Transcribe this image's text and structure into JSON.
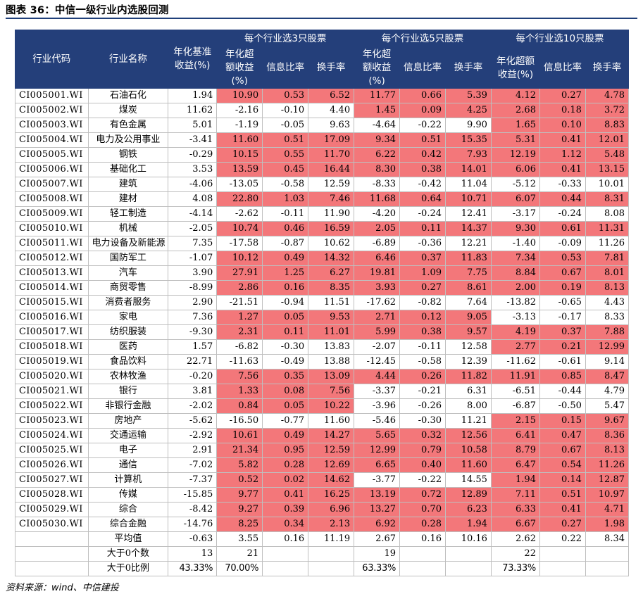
{
  "title": "图表 36：中信一级行业内选股回测",
  "source": "资料来源：wind、中信建投",
  "header": {
    "code": "行业代码",
    "name": "行业名称",
    "bench": "年化基准收益(%)",
    "group3": "每个行业选3只股票",
    "group5": "每个行业选5只股票",
    "group10": "每个行业选10只股票",
    "excess": "年化超额收益(%)",
    "ir": "信息比率",
    "turnover": "换手率"
  },
  "colors": {
    "header_bg": "#243f7a",
    "highlight": "#f3777a",
    "rule": "#1f3f7a"
  },
  "rows": [
    {
      "code": "CI005001.WI",
      "name": "石油石化",
      "bench": "1.94",
      "g3": [
        "10.90",
        "0.53",
        "6.52"
      ],
      "g5": [
        "11.77",
        "0.66",
        "5.39"
      ],
      "g10": [
        "4.12",
        "0.27",
        "4.78"
      ],
      "r3": true,
      "r5": true,
      "r10": true
    },
    {
      "code": "CI005002.WI",
      "name": "煤炭",
      "bench": "11.62",
      "g3": [
        "-2.16",
        "-0.10",
        "4.40"
      ],
      "g5": [
        "1.45",
        "0.09",
        "4.25"
      ],
      "g10": [
        "2.68",
        "0.18",
        "3.72"
      ],
      "r3": false,
      "r5": true,
      "r10": true
    },
    {
      "code": "CI005003.WI",
      "name": "有色金属",
      "bench": "5.01",
      "g3": [
        "-1.19",
        "-0.05",
        "9.63"
      ],
      "g5": [
        "-4.64",
        "-0.22",
        "9.90"
      ],
      "g10": [
        "1.65",
        "0.10",
        "8.83"
      ],
      "r3": false,
      "r5": false,
      "r10": true
    },
    {
      "code": "CI005004.WI",
      "name": "电力及公用事业",
      "bench": "-3.41",
      "g3": [
        "11.60",
        "0.51",
        "17.09"
      ],
      "g5": [
        "9.34",
        "0.51",
        "15.35"
      ],
      "g10": [
        "5.31",
        "0.41",
        "12.01"
      ],
      "r3": true,
      "r5": true,
      "r10": true
    },
    {
      "code": "CI005005.WI",
      "name": "钢铁",
      "bench": "-0.29",
      "g3": [
        "10.15",
        "0.55",
        "11.70"
      ],
      "g5": [
        "6.22",
        "0.42",
        "7.93"
      ],
      "g10": [
        "12.19",
        "1.12",
        "5.48"
      ],
      "r3": true,
      "r5": true,
      "r10": true
    },
    {
      "code": "CI005006.WI",
      "name": "基础化工",
      "bench": "3.53",
      "g3": [
        "13.59",
        "0.45",
        "16.44"
      ],
      "g5": [
        "8.30",
        "0.38",
        "14.01"
      ],
      "g10": [
        "6.06",
        "0.41",
        "13.15"
      ],
      "r3": true,
      "r5": true,
      "r10": true
    },
    {
      "code": "CI005007.WI",
      "name": "建筑",
      "bench": "-4.06",
      "g3": [
        "-13.05",
        "-0.58",
        "12.59"
      ],
      "g5": [
        "-8.33",
        "-0.42",
        "11.04"
      ],
      "g10": [
        "-5.12",
        "-0.33",
        "10.01"
      ],
      "r3": false,
      "r5": false,
      "r10": false
    },
    {
      "code": "CI005008.WI",
      "name": "建材",
      "bench": "4.08",
      "g3": [
        "22.80",
        "1.03",
        "7.46"
      ],
      "g5": [
        "11.68",
        "0.64",
        "10.71"
      ],
      "g10": [
        "6.07",
        "0.44",
        "8.31"
      ],
      "r3": true,
      "r5": true,
      "r10": true
    },
    {
      "code": "CI005009.WI",
      "name": "轻工制造",
      "bench": "-4.14",
      "g3": [
        "-2.62",
        "-0.11",
        "11.90"
      ],
      "g5": [
        "-4.20",
        "-0.24",
        "12.41"
      ],
      "g10": [
        "-3.17",
        "-0.24",
        "8.08"
      ],
      "r3": false,
      "r5": false,
      "r10": false
    },
    {
      "code": "CI005010.WI",
      "name": "机械",
      "bench": "-2.05",
      "g3": [
        "10.74",
        "0.46",
        "16.59"
      ],
      "g5": [
        "2.05",
        "0.11",
        "14.37"
      ],
      "g10": [
        "9.30",
        "0.61",
        "11.31"
      ],
      "r3": true,
      "r5": true,
      "r10": true
    },
    {
      "code": "CI005011.WI",
      "name": "电力设备及新能源",
      "bench": "7.35",
      "g3": [
        "-17.58",
        "-0.87",
        "10.62"
      ],
      "g5": [
        "-6.89",
        "-0.36",
        "12.21"
      ],
      "g10": [
        "-1.40",
        "-0.09",
        "11.26"
      ],
      "r3": false,
      "r5": false,
      "r10": false
    },
    {
      "code": "CI005012.WI",
      "name": "国防军工",
      "bench": "-1.07",
      "g3": [
        "10.12",
        "0.49",
        "14.32"
      ],
      "g5": [
        "6.46",
        "0.37",
        "11.83"
      ],
      "g10": [
        "7.34",
        "0.53",
        "7.81"
      ],
      "r3": true,
      "r5": true,
      "r10": true
    },
    {
      "code": "CI005013.WI",
      "name": "汽车",
      "bench": "3.90",
      "g3": [
        "27.91",
        "1.25",
        "6.27"
      ],
      "g5": [
        "19.81",
        "1.09",
        "7.75"
      ],
      "g10": [
        "8.84",
        "0.67",
        "8.01"
      ],
      "r3": true,
      "r5": true,
      "r10": true
    },
    {
      "code": "CI005014.WI",
      "name": "商贸零售",
      "bench": "-8.99",
      "g3": [
        "2.86",
        "0.16",
        "8.35"
      ],
      "g5": [
        "3.93",
        "0.27",
        "8.61"
      ],
      "g10": [
        "2.00",
        "0.19",
        "8.13"
      ],
      "r3": true,
      "r5": true,
      "r10": true
    },
    {
      "code": "CI005015.WI",
      "name": "消费者服务",
      "bench": "2.90",
      "g3": [
        "-21.51",
        "-0.94",
        "11.51"
      ],
      "g5": [
        "-17.62",
        "-0.82",
        "7.64"
      ],
      "g10": [
        "-13.82",
        "-0.65",
        "4.43"
      ],
      "r3": false,
      "r5": false,
      "r10": false
    },
    {
      "code": "CI005016.WI",
      "name": "家电",
      "bench": "7.36",
      "g3": [
        "1.27",
        "0.05",
        "9.53"
      ],
      "g5": [
        "2.71",
        "0.12",
        "9.05"
      ],
      "g10": [
        "-3.13",
        "-0.17",
        "8.33"
      ],
      "r3": true,
      "r5": true,
      "r10": false
    },
    {
      "code": "CI005017.WI",
      "name": "纺织服装",
      "bench": "-9.30",
      "g3": [
        "2.31",
        "0.11",
        "11.01"
      ],
      "g5": [
        "5.99",
        "0.38",
        "9.57"
      ],
      "g10": [
        "4.19",
        "0.37",
        "7.88"
      ],
      "r3": true,
      "r5": true,
      "r10": true
    },
    {
      "code": "CI005018.WI",
      "name": "医药",
      "bench": "1.57",
      "g3": [
        "-6.82",
        "-0.30",
        "13.83"
      ],
      "g5": [
        "-2.07",
        "-0.11",
        "12.58"
      ],
      "g10": [
        "2.77",
        "0.21",
        "12.99"
      ],
      "r3": false,
      "r5": false,
      "r10": true
    },
    {
      "code": "CI005019.WI",
      "name": "食品饮料",
      "bench": "22.71",
      "g3": [
        "-11.63",
        "-0.49",
        "13.88"
      ],
      "g5": [
        "-12.45",
        "-0.58",
        "12.39"
      ],
      "g10": [
        "-11.62",
        "-0.61",
        "9.14"
      ],
      "r3": false,
      "r5": false,
      "r10": false
    },
    {
      "code": "CI005020.WI",
      "name": "农林牧渔",
      "bench": "-0.20",
      "g3": [
        "7.56",
        "0.35",
        "13.09"
      ],
      "g5": [
        "4.44",
        "0.26",
        "11.82"
      ],
      "g10": [
        "11.91",
        "0.85",
        "8.47"
      ],
      "r3": true,
      "r5": true,
      "r10": true
    },
    {
      "code": "CI005021.WI",
      "name": "银行",
      "bench": "3.81",
      "g3": [
        "1.33",
        "0.08",
        "7.56"
      ],
      "g5": [
        "-3.37",
        "-0.21",
        "6.31"
      ],
      "g10": [
        "-6.51",
        "-0.44",
        "4.79"
      ],
      "r3": true,
      "r5": false,
      "r10": false
    },
    {
      "code": "CI005022.WI",
      "name": "非银行金融",
      "bench": "-2.02",
      "g3": [
        "0.84",
        "0.05",
        "10.22"
      ],
      "g5": [
        "-3.96",
        "-0.26",
        "8.00"
      ],
      "g10": [
        "-6.87",
        "-0.50",
        "5.47"
      ],
      "r3": true,
      "r5": false,
      "r10": false
    },
    {
      "code": "CI005023.WI",
      "name": "房地产",
      "bench": "-5.62",
      "g3": [
        "-16.50",
        "-0.77",
        "11.60"
      ],
      "g5": [
        "-5.46",
        "-0.30",
        "11.21"
      ],
      "g10": [
        "2.15",
        "0.15",
        "9.67"
      ],
      "r3": false,
      "r5": false,
      "r10": true
    },
    {
      "code": "CI005024.WI",
      "name": "交通运输",
      "bench": "-2.92",
      "g3": [
        "10.61",
        "0.49",
        "14.27"
      ],
      "g5": [
        "5.65",
        "0.32",
        "12.56"
      ],
      "g10": [
        "6.41",
        "0.47",
        "8.36"
      ],
      "r3": true,
      "r5": true,
      "r10": true
    },
    {
      "code": "CI005025.WI",
      "name": "电子",
      "bench": "2.91",
      "g3": [
        "21.34",
        "0.95",
        "12.59"
      ],
      "g5": [
        "12.99",
        "0.79",
        "10.58"
      ],
      "g10": [
        "8.79",
        "0.67",
        "8.13"
      ],
      "r3": true,
      "r5": true,
      "r10": true
    },
    {
      "code": "CI005026.WI",
      "name": "通信",
      "bench": "-7.02",
      "g3": [
        "5.82",
        "0.28",
        "12.69"
      ],
      "g5": [
        "6.65",
        "0.40",
        "11.60"
      ],
      "g10": [
        "6.47",
        "0.54",
        "11.26"
      ],
      "r3": true,
      "r5": true,
      "r10": true
    },
    {
      "code": "CI005027.WI",
      "name": "计算机",
      "bench": "-7.37",
      "g3": [
        "0.52",
        "0.02",
        "14.62"
      ],
      "g5": [
        "-3.77",
        "-0.22",
        "14.55"
      ],
      "g10": [
        "1.94",
        "0.14",
        "12.87"
      ],
      "r3": true,
      "r5": false,
      "r10": true
    },
    {
      "code": "CI005028.WI",
      "name": "传媒",
      "bench": "-15.85",
      "g3": [
        "9.77",
        "0.41",
        "16.25"
      ],
      "g5": [
        "13.19",
        "0.72",
        "12.89"
      ],
      "g10": [
        "7.11",
        "0.51",
        "10.97"
      ],
      "r3": true,
      "r5": true,
      "r10": true
    },
    {
      "code": "CI005029.WI",
      "name": "综合",
      "bench": "-8.42",
      "g3": [
        "9.27",
        "0.39",
        "6.96"
      ],
      "g5": [
        "13.27",
        "0.70",
        "6.23"
      ],
      "g10": [
        "6.33",
        "0.41",
        "4.71"
      ],
      "r3": true,
      "r5": true,
      "r10": true
    },
    {
      "code": "CI005030.WI",
      "name": "综合金融",
      "bench": "-14.76",
      "g3": [
        "8.25",
        "0.34",
        "2.13"
      ],
      "g5": [
        "6.92",
        "0.28",
        "1.94"
      ],
      "g10": [
        "6.67",
        "0.27",
        "1.98"
      ],
      "r3": true,
      "r5": true,
      "r10": true
    }
  ],
  "summary": {
    "avg": {
      "label": "平均值",
      "bench": "-0.63",
      "g3": [
        "3.55",
        "0.16",
        "11.19"
      ],
      "g5": [
        "2.67",
        "0.16",
        "10.16"
      ],
      "g10": [
        "2.62",
        "0.22",
        "8.34"
      ]
    },
    "count": {
      "label": "大于0个数",
      "bench": "13",
      "g3": "21",
      "g5": "19",
      "g10": "22"
    },
    "ratio": {
      "label": "大于0比例",
      "bench": "43.33%",
      "g3": "70.00%",
      "g5": "63.33%",
      "g10": "73.33%"
    }
  }
}
